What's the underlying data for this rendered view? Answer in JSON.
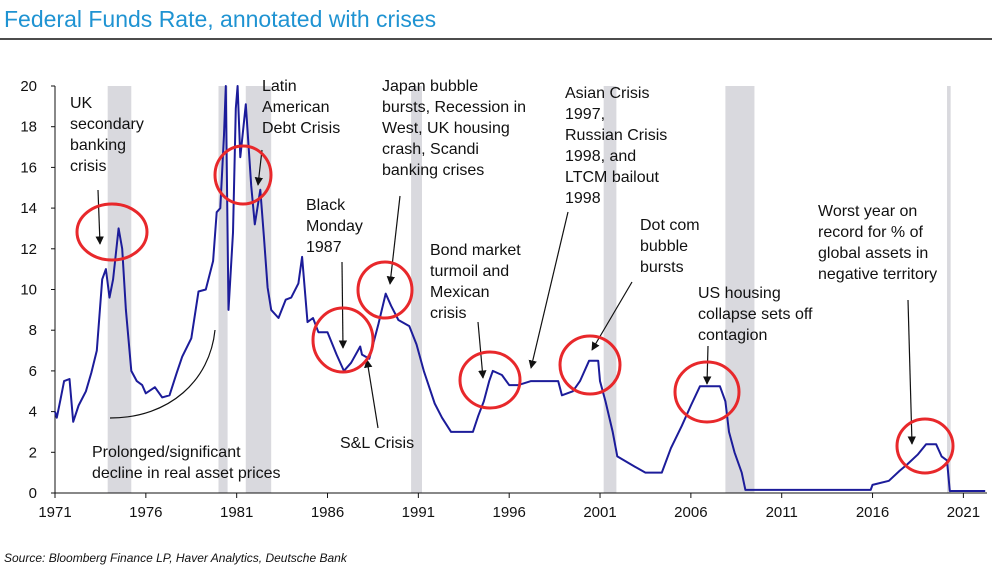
{
  "chart_data": {
    "type": "line",
    "title": "Federal Funds Rate, annotated with crises",
    "source": "Source: Bloomberg Finance LP, Haver Analytics, Deutsche Bank",
    "color": "#1c1c9a",
    "band_color": "#d9d9de",
    "xlim": [
      1971,
      2022.3
    ],
    "ylim": [
      0,
      20
    ],
    "xticks": [
      1971,
      1976,
      1981,
      1986,
      1991,
      1996,
      2001,
      2006,
      2011,
      2016,
      2021
    ],
    "yticks": [
      0,
      2,
      4,
      6,
      8,
      10,
      12,
      14,
      16,
      18,
      20
    ],
    "recessions": [
      [
        1973.9,
        1975.2
      ],
      [
        1980.0,
        1980.5
      ],
      [
        1981.5,
        1982.9
      ],
      [
        1990.6,
        1991.2
      ],
      [
        2001.2,
        2001.9
      ],
      [
        2007.9,
        2009.5
      ],
      [
        2020.1,
        2020.3
      ]
    ],
    "x": [
      1971,
      1971.1,
      1971.3,
      1971.5,
      1971.8,
      1972.0,
      1972.3,
      1972.7,
      1973.0,
      1973.3,
      1973.6,
      1973.8,
      1974.0,
      1974.2,
      1974.5,
      1974.7,
      1974.9,
      1975.2,
      1975.5,
      1975.8,
      1976.0,
      1976.5,
      1976.9,
      1977.3,
      1977.7,
      1978.0,
      1978.5,
      1978.9,
      1979.3,
      1979.7,
      1979.9,
      1980.1,
      1980.3,
      1980.4,
      1980.55,
      1980.8,
      1980.95,
      1981.05,
      1981.2,
      1981.5,
      1981.8,
      1982.0,
      1982.3,
      1982.5,
      1982.7,
      1982.9,
      1983.3,
      1983.7,
      1984.0,
      1984.4,
      1984.6,
      1984.9,
      1985.2,
      1985.5,
      1986.0,
      1986.5,
      1986.9,
      1987.3,
      1987.8,
      1987.9,
      1988.3,
      1988.8,
      1989.2,
      1989.5,
      1989.9,
      1990.5,
      1990.9,
      1991.3,
      1991.9,
      1992.3,
      1992.8,
      1993.5,
      1994.0,
      1994.3,
      1994.6,
      1994.9,
      1995.1,
      1995.6,
      1996.0,
      1996.5,
      1997.2,
      1998.7,
      1998.9,
      1999.5,
      1999.9,
      2000.4,
      2000.9,
      2001.0,
      2001.3,
      2001.7,
      2001.95,
      2002.9,
      2003.5,
      2004.4,
      2004.9,
      2005.5,
      2006.0,
      2006.5,
      2007.6,
      2007.9,
      2008.1,
      2008.4,
      2008.8,
      2009.0,
      2015.9,
      2016.0,
      2016.9,
      2017.5,
      2017.9,
      2018.5,
      2018.95,
      2019.5,
      2019.8,
      2020.1,
      2020.25,
      2022.2
    ],
    "values": [
      4.0,
      3.7,
      4.6,
      5.5,
      5.6,
      3.5,
      4.3,
      5.0,
      5.9,
      7.0,
      10.5,
      11.0,
      9.6,
      10.5,
      13.0,
      12.0,
      9.0,
      6.0,
      5.5,
      5.3,
      4.9,
      5.2,
      4.7,
      4.8,
      5.9,
      6.7,
      7.6,
      9.9,
      10.0,
      11.4,
      13.8,
      14.0,
      17.6,
      20,
      9.0,
      12.8,
      18.9,
      20,
      16.5,
      19.1,
      15.1,
      13.2,
      14.9,
      12.6,
      10.1,
      9.0,
      8.6,
      9.5,
      9.6,
      10.3,
      11.6,
      8.4,
      8.6,
      7.9,
      7.9,
      6.8,
      6.0,
      6.4,
      7.2,
      6.8,
      6.6,
      8.3,
      9.8,
      9.2,
      8.5,
      8.2,
      7.3,
      6.0,
      4.4,
      3.7,
      3.0,
      3.0,
      3.0,
      3.8,
      4.5,
      5.5,
      6.0,
      5.8,
      5.3,
      5.3,
      5.5,
      5.5,
      4.8,
      5.0,
      5.5,
      6.5,
      6.5,
      5.5,
      4.5,
      3.0,
      1.8,
      1.3,
      1.0,
      1.0,
      2.2,
      3.3,
      4.3,
      5.25,
      5.25,
      4.5,
      3.0,
      2.0,
      1.0,
      0.15,
      0.15,
      0.4,
      0.6,
      1.1,
      1.4,
      1.9,
      2.4,
      2.4,
      1.8,
      1.6,
      0.1,
      0.1
    ],
    "annotations": [
      {
        "lines": [
          "UK",
          "secondary",
          "banking",
          "crisis"
        ]
      },
      {
        "lines": [
          "Latin",
          "American",
          "Debt Crisis"
        ]
      },
      {
        "lines": [
          "Black",
          "Monday",
          "1987"
        ]
      },
      {
        "lines": [
          "Japan bubble",
          "bursts, Recession in",
          "West, UK housing",
          "crash, Scandi",
          "banking crises"
        ]
      },
      {
        "lines": [
          "Bond market",
          "turmoil and",
          "Mexican",
          "crisis"
        ]
      },
      {
        "lines": [
          "Asian Crisis",
          "1997,",
          "Russian Crisis",
          "1998, and",
          "LTCM bailout",
          "1998"
        ]
      },
      {
        "lines": [
          "Dot com",
          "bubble",
          "bursts"
        ]
      },
      {
        "lines": [
          "US housing",
          "collapse sets off",
          "contagion"
        ]
      },
      {
        "lines": [
          "Worst year on",
          "record for % of",
          "global assets in",
          "negative territory"
        ]
      },
      {
        "lines": [
          "S&L Crisis"
        ]
      },
      {
        "lines": [
          "Prolonged/significant",
          "decline in real asset prices"
        ]
      }
    ]
  }
}
